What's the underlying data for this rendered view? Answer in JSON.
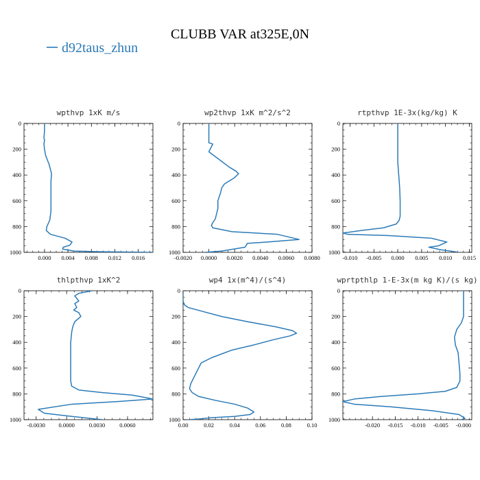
{
  "figure": {
    "title": "CLUBB VAR at325E,0N",
    "legend_label": "d92taus_zhun",
    "line_color": "#2a7ab8"
  },
  "chart_data": [
    {
      "type": "line",
      "title": "wpthvp  1xK m/s",
      "xlim": [
        -0.0035,
        0.0185
      ],
      "ylim": [
        0,
        1000
      ],
      "y_inverted": true,
      "xticks": [
        0.0,
        0.004,
        0.008,
        0.012,
        0.016
      ],
      "xtick_labels": [
        "0.000",
        "0.004",
        "0.008",
        "0.012",
        "0.016"
      ],
      "yticks": [
        0,
        200,
        400,
        600,
        800,
        1000
      ],
      "ytick_labels": [
        "0",
        "200",
        "400",
        "600",
        "800",
        "1000"
      ],
      "series": [
        {
          "x": [
            0.0,
            0.0,
            -0.0001,
            0.0,
            -0.0001,
            0.0,
            0.0002,
            0.0008,
            0.0012,
            0.0011,
            0.0011,
            0.0011,
            0.0011,
            0.0009,
            0.0004,
            0.0003,
            0.001,
            0.0035,
            0.0047,
            0.0043,
            0.0032,
            0.0031,
            0.005,
            0.009,
            0.0185
          ],
          "y": [
            0,
            60,
            110,
            130,
            160,
            200,
            250,
            320,
            390,
            450,
            530,
            600,
            680,
            750,
            800,
            830,
            860,
            890,
            920,
            945,
            960,
            975,
            990,
            995,
            1000
          ]
        }
      ]
    },
    {
      "type": "line",
      "title": "wp2thvp  1xK m^2/s^2",
      "xlim": [
        -0.002,
        0.008
      ],
      "ylim": [
        0,
        1000
      ],
      "y_inverted": true,
      "xticks": [
        -0.002,
        0.0,
        0.002,
        0.004,
        0.006,
        0.008
      ],
      "xtick_labels": [
        "-0.0020",
        "0.0000",
        "0.0020",
        "0.0040",
        "0.0060",
        "0.0080"
      ],
      "yticks": [
        0,
        200,
        400,
        600,
        800,
        1000
      ],
      "ytick_labels": [
        "0",
        "200",
        "400",
        "600",
        "800",
        "1000"
      ],
      "series": [
        {
          "x": [
            0.0,
            0.0,
            0.0,
            0.0,
            0.0003,
            0.0002,
            0.0,
            0.0008,
            0.0016,
            0.0021,
            0.0023,
            0.002,
            0.0012,
            0.001,
            0.0009,
            0.0007,
            0.0007,
            0.0006,
            0.0005,
            0.0003,
            0.0002,
            0.0003,
            0.0018,
            0.0053,
            0.007,
            0.0045,
            0.003,
            0.0028,
            0.001,
            -0.0003
          ],
          "y": [
            0,
            80,
            130,
            150,
            160,
            180,
            220,
            280,
            340,
            370,
            390,
            420,
            470,
            500,
            540,
            600,
            660,
            700,
            740,
            770,
            790,
            810,
            840,
            860,
            900,
            920,
            930,
            960,
            990,
            1000
          ]
        }
      ]
    },
    {
      "type": "line",
      "title": "rtpthvp  1E-3x(kg/kg) K",
      "xlim": [
        -0.0115,
        0.0155
      ],
      "ylim": [
        0,
        1000
      ],
      "y_inverted": true,
      "xticks": [
        -0.01,
        -0.005,
        0.0,
        0.005,
        0.01,
        0.015
      ],
      "xtick_labels": [
        "-0.010",
        "-0.005",
        "0.000",
        "0.005",
        "0.010",
        "0.015"
      ],
      "yticks": [
        0,
        200,
        400,
        600,
        800,
        1000
      ],
      "ytick_labels": [
        "0",
        "200",
        "400",
        "600",
        "800",
        "1000"
      ],
      "series": [
        {
          "x": [
            0.0,
            0.0,
            0.0,
            0.0,
            0.0002,
            0.0004,
            0.0005,
            0.0005,
            0.0005,
            0.0003,
            -0.0003,
            -0.003,
            -0.0075,
            -0.0115,
            -0.0105,
            -0.002,
            0.007,
            0.0103,
            0.0085,
            0.0065,
            0.009,
            0.012,
            0.0125
          ],
          "y": [
            0,
            100,
            200,
            300,
            400,
            500,
            600,
            680,
            720,
            750,
            780,
            810,
            830,
            850,
            860,
            870,
            890,
            920,
            950,
            960,
            980,
            995,
            1000
          ]
        }
      ]
    },
    {
      "type": "line",
      "title": "thlpthvp  1xK^2",
      "xlim": [
        -0.0042,
        0.0085
      ],
      "ylim": [
        0,
        1000
      ],
      "y_inverted": true,
      "xticks": [
        -0.003,
        0.0,
        0.003,
        0.006
      ],
      "xtick_labels": [
        "-0.0030",
        "0.0000",
        "0.0030",
        "0.0060"
      ],
      "yticks": [
        0,
        200,
        400,
        600,
        800,
        1000
      ],
      "ytick_labels": [
        "0",
        "200",
        "400",
        "600",
        "800",
        "1000"
      ],
      "series": [
        {
          "x": [
            0.0025,
            0.0012,
            0.0008,
            0.0012,
            0.0008,
            0.001,
            0.0007,
            0.0012,
            0.0014,
            0.0008,
            0.0006,
            0.0005,
            0.0004,
            0.0004,
            0.0004,
            0.0004,
            0.0004,
            0.0005,
            0.0012,
            0.0035,
            0.0065,
            0.0085,
            0.005,
            0.0005,
            -0.0028,
            -0.0022,
            0.0005,
            0.0035
          ],
          "y": [
            0,
            20,
            40,
            80,
            100,
            130,
            150,
            170,
            200,
            240,
            280,
            320,
            400,
            500,
            600,
            660,
            700,
            740,
            770,
            790,
            810,
            840,
            860,
            880,
            920,
            950,
            975,
            1000
          ]
        }
      ]
    },
    {
      "type": "line",
      "title": "wp4  1x(m^4)/(s^4)",
      "xlim": [
        0.0,
        0.1
      ],
      "ylim": [
        0,
        1000
      ],
      "y_inverted": true,
      "xticks": [
        0.0,
        0.02,
        0.04,
        0.06,
        0.08,
        0.1
      ],
      "xtick_labels": [
        "0.00",
        "0.02",
        "0.04",
        "0.06",
        "0.08",
        "0.10"
      ],
      "yticks": [
        0,
        200,
        400,
        600,
        800,
        1000
      ],
      "ytick_labels": [
        "0",
        "200",
        "400",
        "600",
        "800",
        "1000"
      ],
      "series": [
        {
          "x": [
            0.0,
            0.0,
            0.001,
            0.004,
            0.015,
            0.03,
            0.05,
            0.072,
            0.085,
            0.088,
            0.083,
            0.07,
            0.055,
            0.038,
            0.022,
            0.014,
            0.012,
            0.01,
            0.008,
            0.006,
            0.005,
            0.007,
            0.012,
            0.025,
            0.04,
            0.05,
            0.055,
            0.052,
            0.04,
            0.022,
            0.012,
            0.005
          ],
          "y": [
            0,
            80,
            110,
            130,
            160,
            200,
            240,
            280,
            310,
            330,
            350,
            380,
            420,
            460,
            520,
            560,
            600,
            640,
            680,
            720,
            760,
            790,
            820,
            850,
            880,
            910,
            940,
            960,
            975,
            985,
            995,
            1000
          ]
        }
      ]
    },
    {
      "type": "line",
      "title": "wprtpthlp  1-E-3x(m kg K)/(s kg)",
      "xlim": [
        -0.0265,
        0.0018
      ],
      "ylim": [
        0,
        1000
      ],
      "y_inverted": true,
      "xticks": [
        -0.02,
        -0.015,
        -0.01,
        -0.005,
        0.0
      ],
      "xtick_labels": [
        "-0.020",
        "-0.015",
        "-0.010",
        "-0.005",
        "-0.000"
      ],
      "yticks": [
        0,
        200,
        400,
        600,
        800,
        1000
      ],
      "ytick_labels": [
        "0",
        "200",
        "400",
        "600",
        "800",
        "1000"
      ],
      "series": [
        {
          "x": [
            0.0,
            0.0,
            0.0,
            -0.0005,
            -0.0015,
            -0.002,
            -0.0018,
            -0.0012,
            -0.001,
            -0.0008,
            -0.0008,
            -0.0015,
            -0.004,
            -0.01,
            -0.018,
            -0.024,
            -0.0265,
            -0.024,
            -0.016,
            -0.007,
            -0.001,
            0.0003,
            -0.0005
          ],
          "y": [
            0,
            100,
            200,
            250,
            300,
            360,
            420,
            480,
            560,
            640,
            700,
            750,
            780,
            800,
            820,
            840,
            860,
            880,
            900,
            930,
            960,
            990,
            1000
          ]
        }
      ]
    }
  ]
}
